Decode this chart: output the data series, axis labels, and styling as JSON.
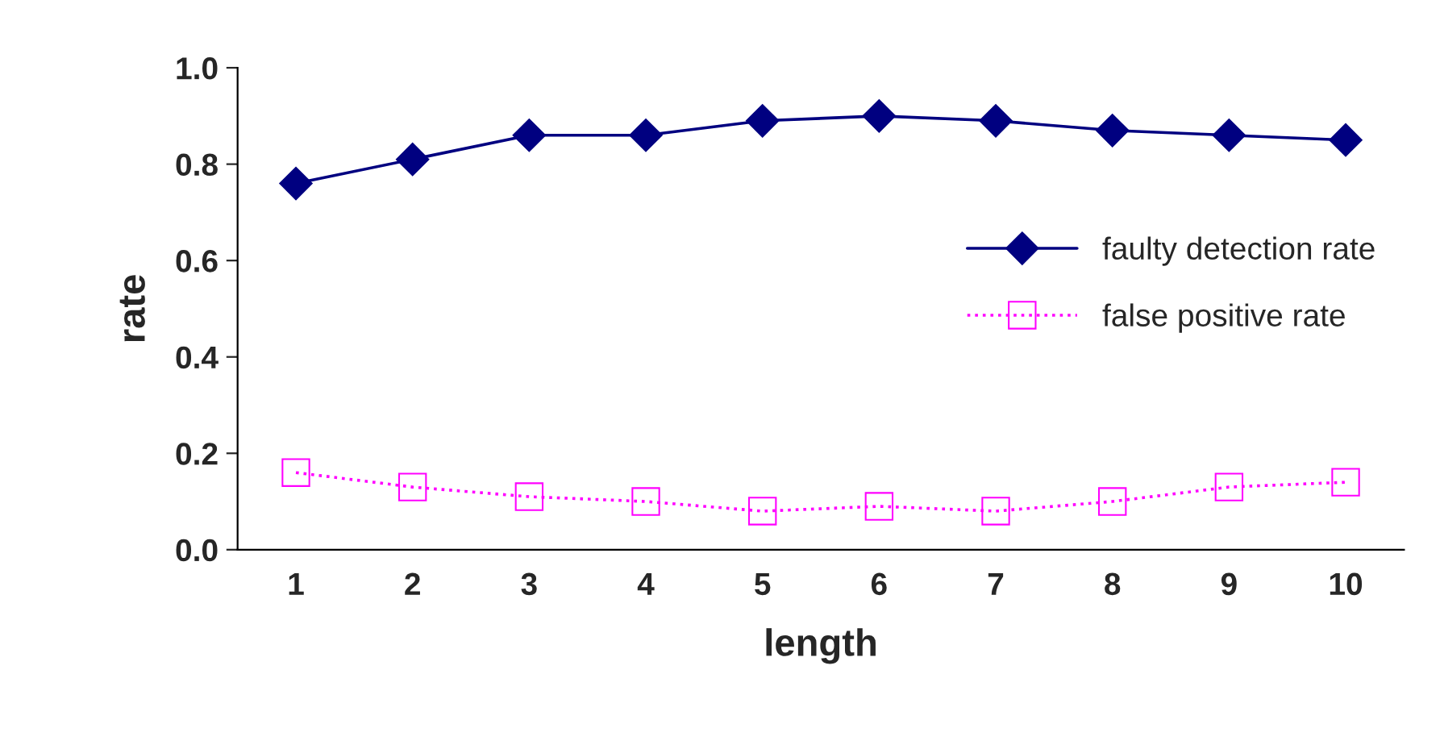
{
  "chart_data": {
    "type": "line",
    "xlabel": "length",
    "ylabel": "rate",
    "categories": [
      "1",
      "2",
      "3",
      "4",
      "5",
      "6",
      "7",
      "8",
      "9",
      "10"
    ],
    "series": [
      {
        "name": "faulty detection rate",
        "color": "#000080",
        "marker": "diamond",
        "line_style": "solid",
        "values": [
          0.76,
          0.81,
          0.86,
          0.86,
          0.89,
          0.9,
          0.89,
          0.87,
          0.86,
          0.85
        ]
      },
      {
        "name": "false positive rate",
        "color": "#ff00ff",
        "marker": "square",
        "line_style": "dotted",
        "values": [
          0.16,
          0.13,
          0.11,
          0.1,
          0.08,
          0.09,
          0.08,
          0.1,
          0.13,
          0.14
        ]
      }
    ],
    "ylim": [
      0,
      1
    ],
    "yticks": [
      {
        "value": 0,
        "label": "0.0"
      },
      {
        "value": 0.2,
        "label": "0.2"
      },
      {
        "value": 0.4,
        "label": "0.4"
      },
      {
        "value": 0.6,
        "label": "0.6"
      },
      {
        "value": 0.8,
        "label": "0.8"
      },
      {
        "value": 1,
        "label": "1.0"
      }
    ],
    "grid": false,
    "legend": "center right"
  }
}
